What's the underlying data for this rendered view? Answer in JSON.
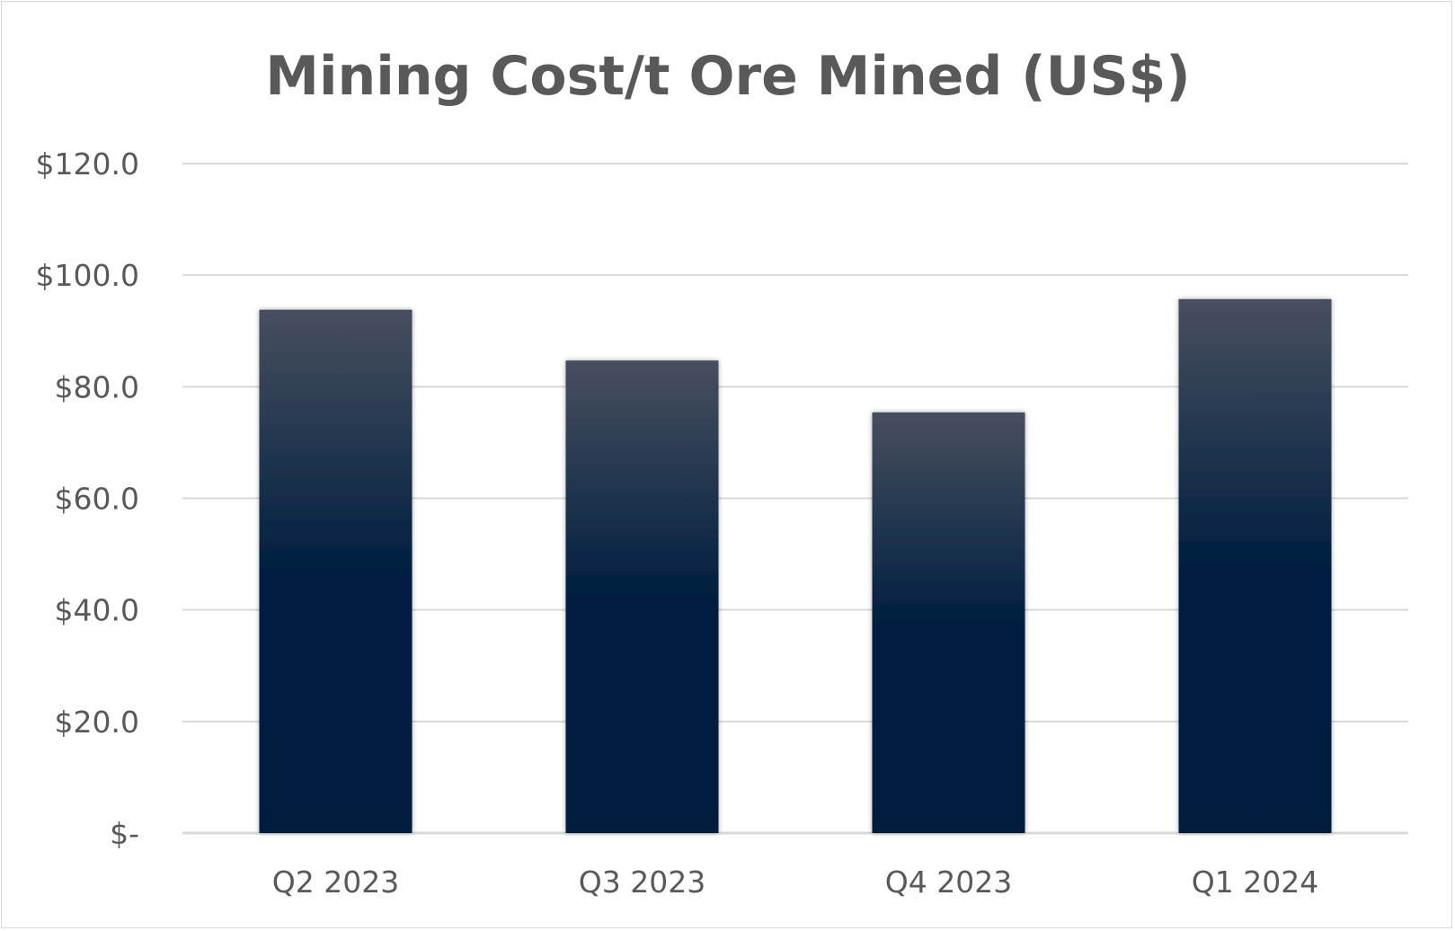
{
  "chart_data": {
    "type": "bar",
    "title": "Mining Cost/t Ore Mined (US$)",
    "xlabel": "",
    "ylabel": "",
    "categories": [
      "Q2 2023",
      "Q3 2023",
      "Q4 2023",
      "Q1 2024"
    ],
    "values": [
      93.8,
      84.7,
      75.4,
      95.7
    ],
    "ylim": [
      0,
      120
    ],
    "yticks": [
      0,
      20,
      40,
      60,
      80,
      100,
      120
    ],
    "ytick_labels": [
      "$-",
      "$20.0",
      "$40.0",
      "$60.0",
      "$80.0",
      "$100.0",
      "$120.0"
    ],
    "grid": true,
    "legend": "none",
    "colors": {
      "bar_top": "#474f5f",
      "bar_mid": "#001f40",
      "bar_bottom": "#001e3e",
      "grid": "#d9d9d9",
      "text": "#595959"
    }
  }
}
